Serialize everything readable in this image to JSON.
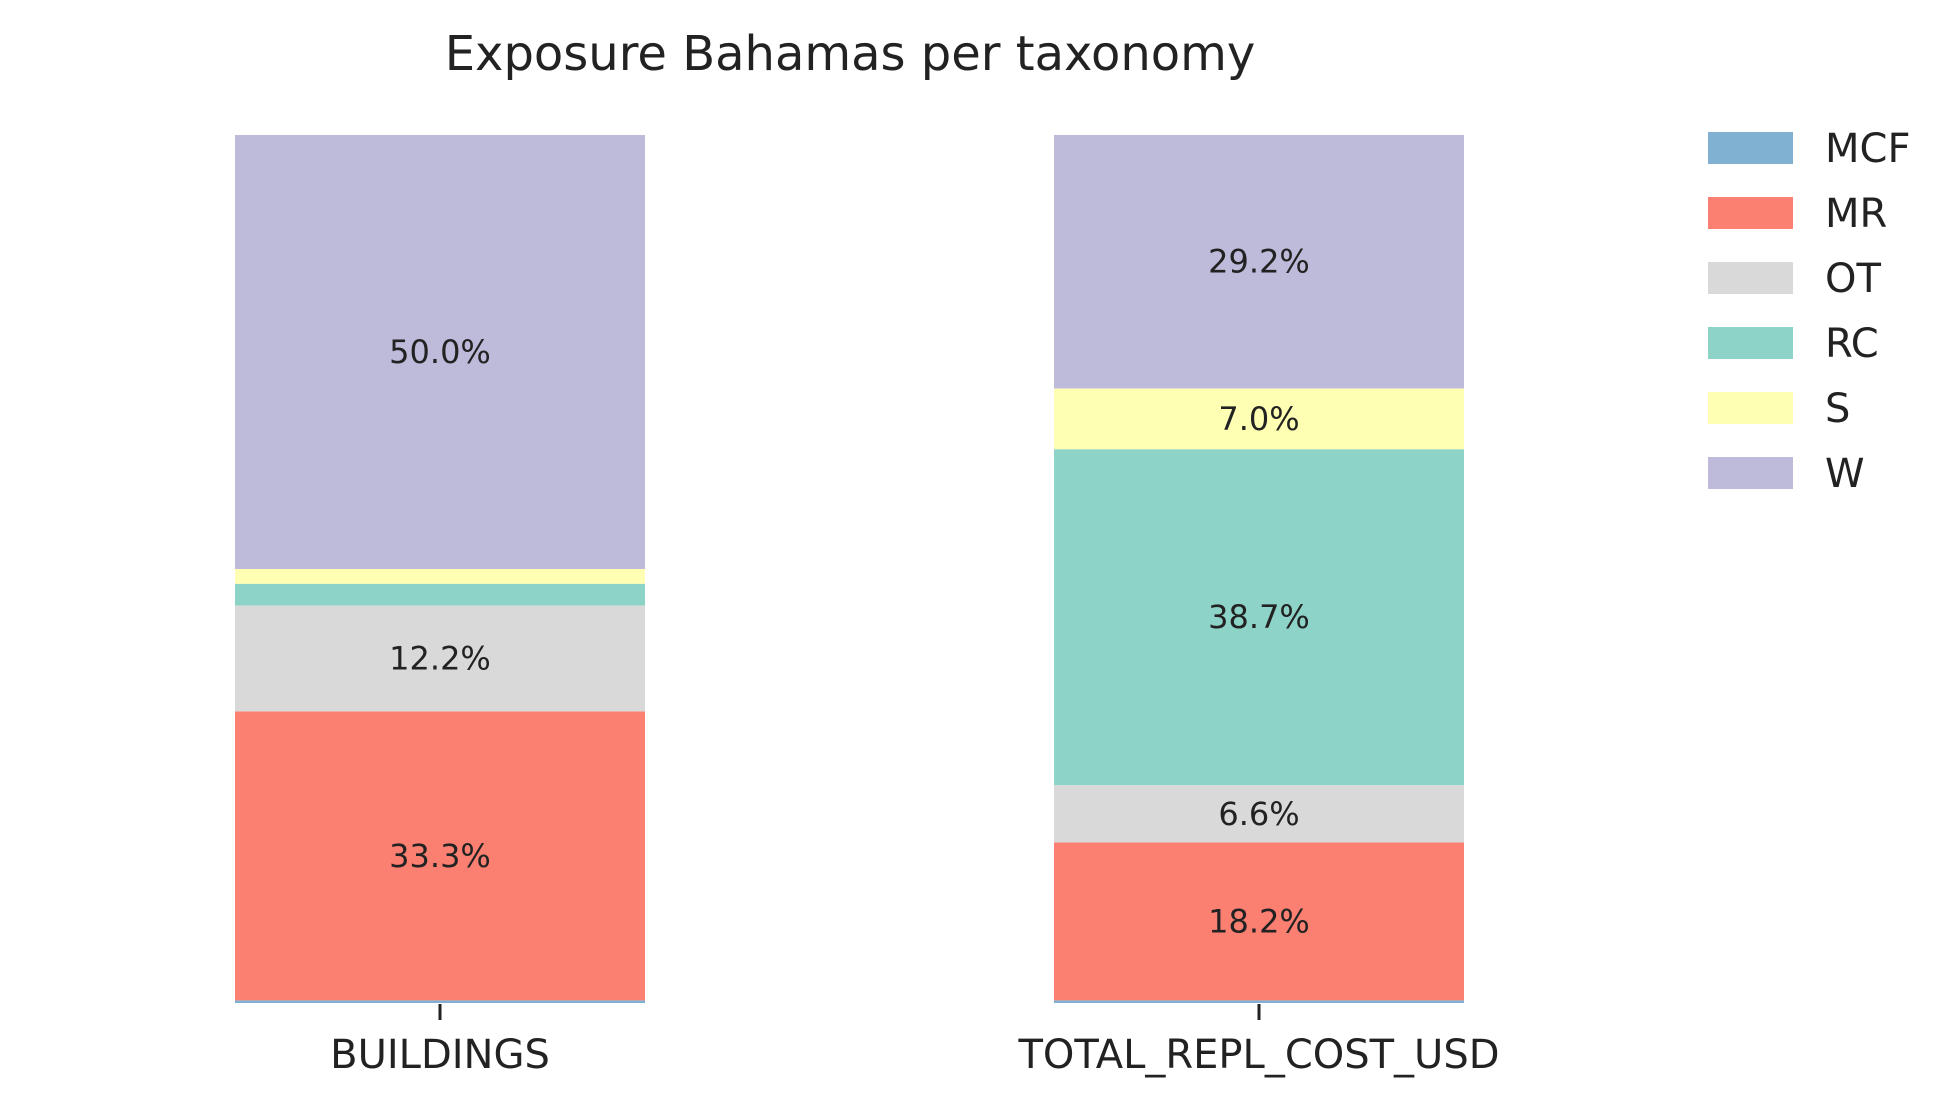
{
  "chart_data": {
    "type": "bar",
    "stacked": true,
    "normalized": true,
    "title": "Exposure Bahamas per taxonomy",
    "categories": [
      "BUILDINGS",
      "TOTAL_REPL_COST_USD"
    ],
    "series": [
      {
        "name": "MCF",
        "color": "#80b1d3",
        "values": [
          0.3,
          0.3
        ]
      },
      {
        "name": "MR",
        "color": "#fb8072",
        "values": [
          33.3,
          18.2
        ]
      },
      {
        "name": "OT",
        "color": "#d9d9d9",
        "values": [
          12.2,
          6.6
        ]
      },
      {
        "name": "RC",
        "color": "#8dd3c7",
        "values": [
          2.5,
          38.7
        ]
      },
      {
        "name": "S",
        "color": "#ffffb3",
        "values": [
          1.7,
          7.0
        ]
      },
      {
        "name": "W",
        "color": "#bebada",
        "values": [
          50.0,
          29.2
        ]
      }
    ],
    "data_labels": [
      [
        "",
        "33.3%",
        "12.2%",
        "",
        "",
        "50.0%"
      ],
      [
        "",
        "18.2%",
        "6.6%",
        "38.7%",
        "7.0%",
        "29.2%"
      ]
    ],
    "xlabel": "",
    "ylabel": "",
    "ylim": [
      0,
      100
    ],
    "legend_position": "right",
    "grid": false
  }
}
